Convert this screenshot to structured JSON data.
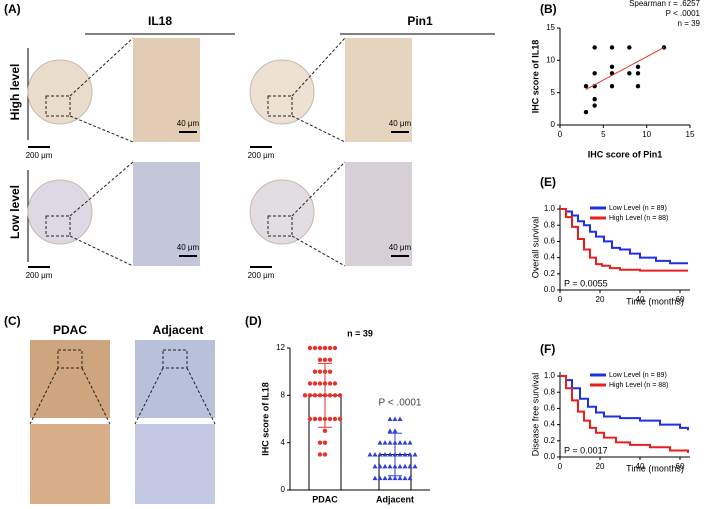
{
  "panel_a": {
    "label": "(A)",
    "columns": [
      "IL18",
      "Pin1"
    ],
    "rows": [
      "High level",
      "Low level"
    ],
    "scale_large": "200 μm",
    "scale_small": "40 μm"
  },
  "panel_c": {
    "label": "(C)",
    "columns": [
      "PDAC",
      "Adjacent"
    ]
  },
  "chart_data": [
    {
      "type": "scatter",
      "panel_label": "(B)",
      "xlabel": "IHC score of Pin1",
      "ylabel": "IHC score of IL18",
      "annotations": [
        "Spearman r = .6257",
        "P < .0001",
        "n = 39"
      ],
      "x": [
        3,
        3,
        4,
        4,
        4,
        4,
        4,
        6,
        6,
        6,
        6,
        8,
        8,
        9,
        9,
        9,
        12
      ],
      "values": [
        2,
        6,
        3,
        4,
        6,
        8,
        12,
        6,
        8,
        9,
        12,
        8,
        12,
        6,
        8,
        9,
        12
      ],
      "color": "#000000",
      "fit": {
        "x": [
          3,
          12
        ],
        "y": [
          5.5,
          12
        ],
        "color": "#e8322e"
      },
      "xlim": [
        0,
        15
      ],
      "xticks": [
        0,
        5,
        10,
        15
      ],
      "ylim": [
        0,
        15
      ],
      "yticks": [
        0,
        5,
        10,
        15
      ]
    },
    {
      "type": "dot_bar",
      "panel_label": "(D)",
      "title": "n = 39",
      "annotation": "P < .0001",
      "ylabel": "IHC score of IL18",
      "categories": [
        "PDAC",
        "Adjacent"
      ],
      "values": [
        8.0,
        3.0
      ],
      "errors": [
        2.7,
        1.8
      ],
      "points": [
        [
          12,
          12,
          12,
          12,
          12,
          12,
          11,
          11,
          11,
          10,
          10,
          10,
          10,
          9,
          9,
          9,
          9,
          9,
          9,
          8,
          8,
          8,
          8,
          8,
          8,
          8,
          8,
          6,
          6,
          6,
          6,
          6,
          6,
          6,
          5,
          4,
          4,
          3,
          3
        ],
        [
          6,
          6,
          6,
          5,
          5,
          4,
          4,
          4,
          4,
          4,
          4,
          4,
          3,
          3,
          3,
          3,
          3,
          3,
          3,
          3,
          3,
          3,
          2,
          2,
          2,
          2,
          2,
          2,
          2,
          2,
          2,
          1,
          1,
          1,
          1,
          1,
          1,
          1,
          1
        ]
      ],
      "colors": [
        "#e8322e",
        "#2f3fd6"
      ],
      "ylim": [
        0,
        12
      ],
      "yticks": [
        0,
        4,
        8,
        12
      ]
    },
    {
      "type": "step",
      "panel_label": "(E)",
      "xlabel": "Time (months)",
      "ylabel": "Overall survival",
      "annotation": "P = 0.0055",
      "series": [
        {
          "name": "Low Level (n = 89)",
          "color": "#1f2fe6",
          "x": [
            0,
            3,
            6,
            9,
            12,
            15,
            18,
            22,
            26,
            30,
            35,
            40,
            48,
            55,
            64
          ],
          "values": [
            1,
            0.97,
            0.92,
            0.85,
            0.8,
            0.72,
            0.66,
            0.6,
            0.52,
            0.5,
            0.45,
            0.4,
            0.36,
            0.33,
            0.33
          ]
        },
        {
          "name": "High Level (n = 88)",
          "color": "#e81f1f",
          "x": [
            0,
            3,
            6,
            9,
            12,
            15,
            18,
            21,
            25,
            30,
            40,
            64
          ],
          "values": [
            1,
            0.9,
            0.78,
            0.63,
            0.5,
            0.4,
            0.32,
            0.3,
            0.27,
            0.25,
            0.24,
            0.24
          ]
        }
      ],
      "xlim": [
        0,
        65
      ],
      "xticks": [
        0,
        20,
        40,
        60
      ],
      "ylim": [
        0,
        1.05
      ],
      "yticks": [
        {
          "value": 0,
          "label": "0.0"
        },
        0.2,
        0.4,
        0.6,
        0.8,
        {
          "value": 1,
          "label": "1.0"
        }
      ]
    },
    {
      "type": "step",
      "panel_label": "(F)",
      "xlabel": "Time (months)",
      "ylabel": "Disease free survival",
      "annotation": "P = 0.0017",
      "series": [
        {
          "name": "Low Level (n = 89)",
          "color": "#1f2fe6",
          "x": [
            0,
            3,
            6,
            10,
            14,
            18,
            22,
            30,
            40,
            50,
            60,
            64
          ],
          "values": [
            1,
            0.95,
            0.85,
            0.72,
            0.62,
            0.55,
            0.5,
            0.48,
            0.45,
            0.4,
            0.36,
            0.33
          ]
        },
        {
          "name": "High Level (n = 88)",
          "color": "#e81f1f",
          "x": [
            0,
            3,
            6,
            9,
            12,
            15,
            18,
            22,
            28,
            35,
            45,
            55,
            64
          ],
          "values": [
            1,
            0.85,
            0.7,
            0.56,
            0.45,
            0.36,
            0.3,
            0.24,
            0.18,
            0.15,
            0.12,
            0.08,
            0.05
          ]
        }
      ],
      "xlim": [
        0,
        65
      ],
      "xticks": [
        0,
        20,
        40,
        60
      ],
      "ylim": [
        0,
        1.05
      ],
      "yticks": [
        {
          "value": 0,
          "label": "0.0"
        },
        0.2,
        0.4,
        0.6,
        0.8,
        {
          "value": 1,
          "label": "1.0"
        }
      ]
    }
  ]
}
